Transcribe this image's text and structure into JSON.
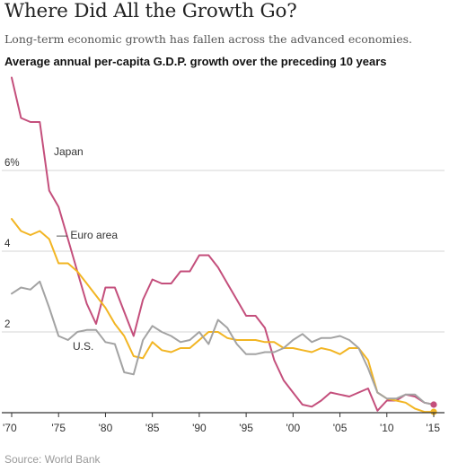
{
  "header": {
    "title": "Where Did All the Growth Go?",
    "subtitle": "Long-term economic growth has fallen across the advanced economies.",
    "chart_heading": "Average annual per-capita G.D.P. growth over the preceding 10 years"
  },
  "footer": {
    "source": "Source: World Bank"
  },
  "colors": {
    "japan": "#c44f7c",
    "euro_area": "#f2b523",
    "us": "#a3a3a3",
    "grid": "#d6d6d6",
    "axis": "#333333",
    "text": "#333333"
  },
  "chart_data": {
    "type": "line",
    "title": "Average annual per-capita G.D.P. growth over the preceding 10 years",
    "xlabel": "",
    "ylabel": "",
    "xlim": [
      1970,
      2015
    ],
    "ylim": [
      0,
      8
    ],
    "x_ticks": [
      1970,
      1975,
      1980,
      1985,
      1990,
      1995,
      2000,
      2005,
      2010,
      2015
    ],
    "x_tick_labels": [
      "'70",
      "'75",
      "'80",
      "'85",
      "'90",
      "'95",
      "'00",
      "'05",
      "'10",
      "'15"
    ],
    "y_ticks": [
      2,
      4,
      6
    ],
    "y_tick_labels": [
      "2",
      "4",
      "6%"
    ],
    "grid": "horizontal",
    "series": [
      {
        "name": "Japan",
        "color": "#c44f7c",
        "x": [
          1970,
          1971,
          1972,
          1973,
          1974,
          1975,
          1976,
          1977,
          1978,
          1979,
          1980,
          1981,
          1982,
          1983,
          1984,
          1985,
          1986,
          1987,
          1988,
          1989,
          1990,
          1991,
          1992,
          1993,
          1994,
          1995,
          1996,
          1997,
          1998,
          1999,
          2000,
          2001,
          2002,
          2003,
          2004,
          2005,
          2006,
          2007,
          2008,
          2009,
          2010,
          2011,
          2012,
          2013,
          2014,
          2015
        ],
        "values": [
          8.3,
          7.3,
          7.2,
          7.2,
          5.5,
          5.1,
          4.3,
          3.5,
          2.7,
          2.2,
          3.1,
          3.1,
          2.5,
          1.9,
          2.8,
          3.3,
          3.2,
          3.2,
          3.5,
          3.5,
          3.9,
          3.9,
          3.6,
          3.2,
          2.8,
          2.4,
          2.4,
          2.1,
          1.3,
          0.8,
          0.5,
          0.2,
          0.15,
          0.3,
          0.5,
          0.45,
          0.4,
          0.5,
          0.6,
          0.05,
          0.3,
          0.3,
          0.45,
          0.4,
          0.25,
          0.2
        ]
      },
      {
        "name": "Euro area",
        "color": "#f2b523",
        "x": [
          1970,
          1971,
          1972,
          1973,
          1974,
          1975,
          1976,
          1977,
          1978,
          1979,
          1980,
          1981,
          1982,
          1983,
          1984,
          1985,
          1986,
          1987,
          1988,
          1989,
          1990,
          1991,
          1992,
          1993,
          1994,
          1995,
          1996,
          1997,
          1998,
          1999,
          2000,
          2001,
          2002,
          2003,
          2004,
          2005,
          2006,
          2007,
          2008,
          2009,
          2010,
          2011,
          2012,
          2013,
          2014,
          2015
        ],
        "values": [
          4.8,
          4.5,
          4.4,
          4.5,
          4.3,
          3.7,
          3.7,
          3.5,
          3.2,
          2.9,
          2.6,
          2.2,
          1.9,
          1.4,
          1.35,
          1.75,
          1.55,
          1.5,
          1.6,
          1.6,
          1.8,
          2.0,
          2.0,
          1.85,
          1.8,
          1.8,
          1.8,
          1.75,
          1.75,
          1.6,
          1.6,
          1.55,
          1.5,
          1.6,
          1.55,
          1.45,
          1.6,
          1.6,
          1.3,
          0.5,
          0.35,
          0.3,
          0.25,
          0.1,
          0.02,
          0.02
        ]
      },
      {
        "name": "U.S.",
        "color": "#a3a3a3",
        "x": [
          1970,
          1971,
          1972,
          1973,
          1974,
          1975,
          1976,
          1977,
          1978,
          1979,
          1980,
          1981,
          1982,
          1983,
          1984,
          1985,
          1986,
          1987,
          1988,
          1989,
          1990,
          1991,
          1992,
          1993,
          1994,
          1995,
          1996,
          1997,
          1998,
          1999,
          2000,
          2001,
          2002,
          2003,
          2004,
          2005,
          2006,
          2007,
          2008,
          2009,
          2010,
          2011,
          2012,
          2013,
          2014,
          2015
        ],
        "values": [
          2.95,
          3.1,
          3.05,
          3.25,
          2.6,
          1.9,
          1.8,
          2.0,
          2.05,
          2.05,
          1.75,
          1.7,
          1.0,
          0.95,
          1.8,
          2.15,
          2.0,
          1.9,
          1.75,
          1.8,
          2.0,
          1.7,
          2.3,
          2.1,
          1.7,
          1.45,
          1.45,
          1.5,
          1.5,
          1.6,
          1.8,
          1.95,
          1.75,
          1.85,
          1.85,
          1.9,
          1.8,
          1.6,
          1.1,
          0.5,
          0.35,
          0.35,
          0.45,
          0.45,
          0.25,
          0.2
        ]
      }
    ],
    "annotations": [
      {
        "text": "Japan",
        "series": "Japan"
      },
      {
        "text": "— Euro area",
        "series": "Euro area"
      },
      {
        "text": "U.S.",
        "series": "U.S."
      }
    ],
    "end_markers": true
  }
}
